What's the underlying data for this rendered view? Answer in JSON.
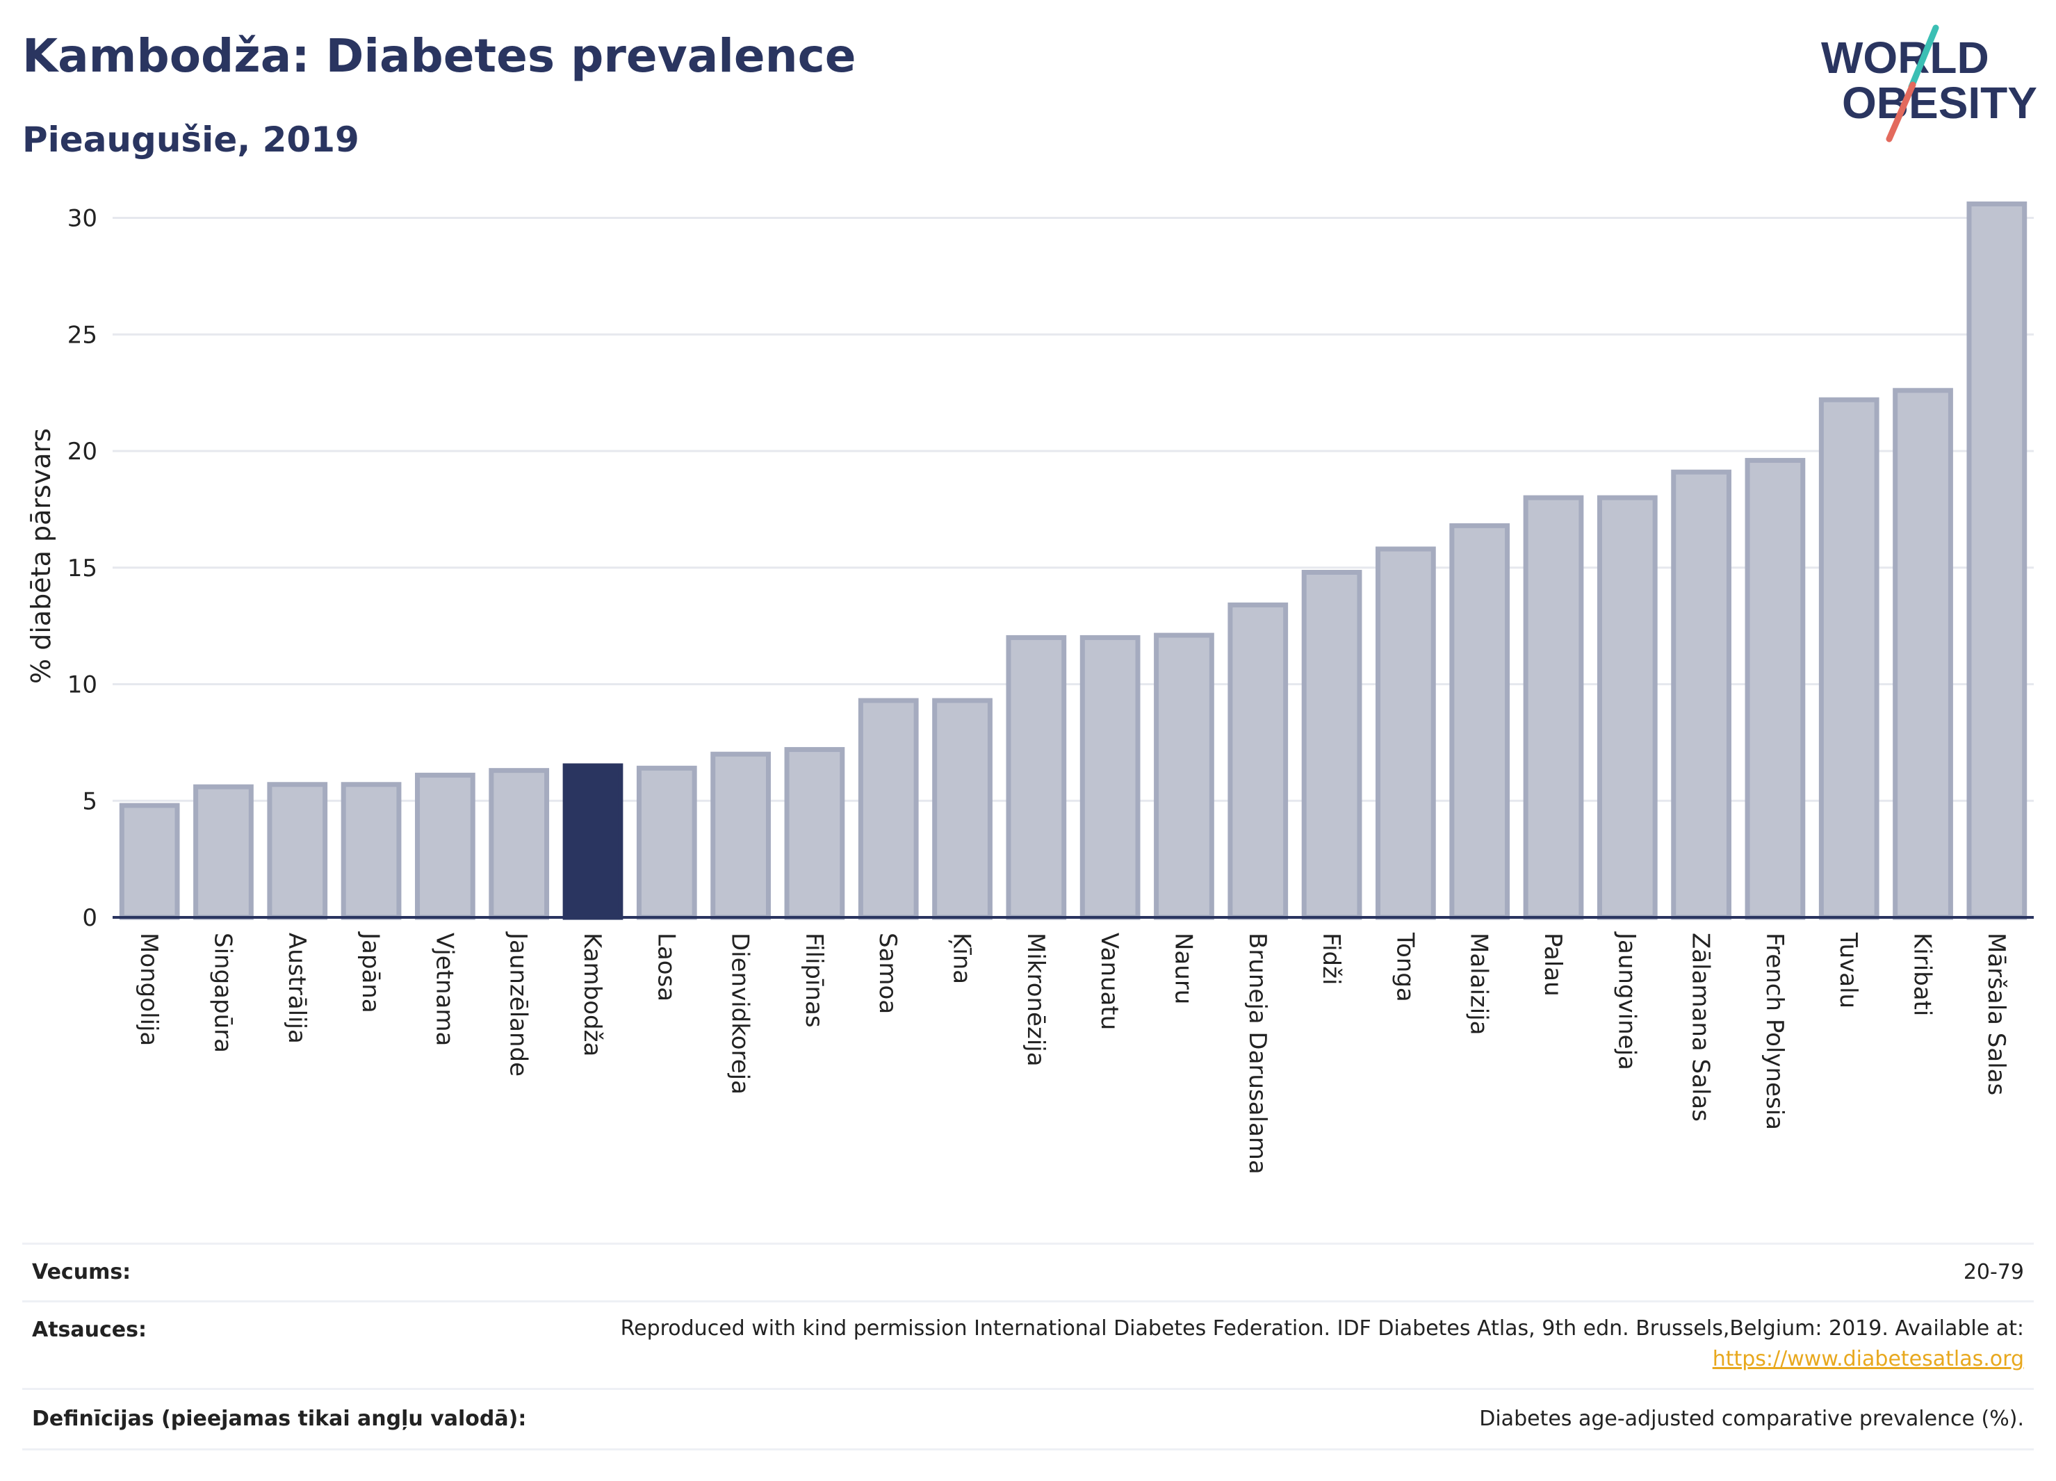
{
  "header": {
    "title": "Kambodža: Diabetes prevalence",
    "subtitle": "Pieaugušie, 2019"
  },
  "logo": {
    "line1": "WORLD",
    "line2": "OBESITY",
    "colors": {
      "text": "#2a3560",
      "slash_teal": "#3bbfb4",
      "slash_red": "#e36a5d"
    }
  },
  "chart_data": {
    "type": "bar",
    "ylabel": "% diabēta pārsvars",
    "ylim": [
      0,
      31
    ],
    "yticks": [
      0,
      5,
      10,
      15,
      20,
      25,
      30
    ],
    "grid": true,
    "highlight_category": "Kambodža",
    "colors": {
      "bar": "#bfc3d0",
      "bar_edge": "#a5abbf",
      "highlight": "#2a3560",
      "grid": "#e6e8ee"
    },
    "categories": [
      "Mongolija",
      "Singapūra",
      "Austrālija",
      "Japāna",
      "Vjetnama",
      "Jaunzēlande",
      "Kambodža",
      "Laosa",
      "Dienvidkoreja",
      "Filipīnas",
      "Samoa",
      "Ķīna",
      "Mikronēzija",
      "Vanuatu",
      "Nauru",
      "Bruneja Darusalama",
      "Fidži",
      "Tonga",
      "Malaizija",
      "Palau",
      "Jaungvineja",
      "Zālamana Salas",
      "French Polynesia",
      "Tuvalu",
      "Kiribati",
      "Māršala Salas"
    ],
    "values": [
      4.8,
      5.6,
      5.7,
      5.7,
      6.1,
      6.3,
      6.5,
      6.4,
      7.0,
      7.2,
      9.3,
      9.3,
      12.0,
      12.0,
      12.1,
      13.4,
      14.8,
      15.8,
      16.8,
      18.0,
      18.0,
      19.1,
      19.6,
      22.2,
      22.6,
      30.6
    ]
  },
  "meta": {
    "rows": [
      {
        "label": "Vecums:",
        "value": "20-79"
      },
      {
        "label": "Atsauces:",
        "value": "Reproduced with kind permission International Diabetes Federation. IDF Diabetes Atlas, 9th edn. Brussels,Belgium: 2019. Available at:",
        "link": "https://www.diabetesatlas.org"
      },
      {
        "label": "Definīcijas (pieejamas tikai angļu valodā):",
        "value": "Diabetes age-adjusted comparative prevalence (%)."
      }
    ]
  }
}
